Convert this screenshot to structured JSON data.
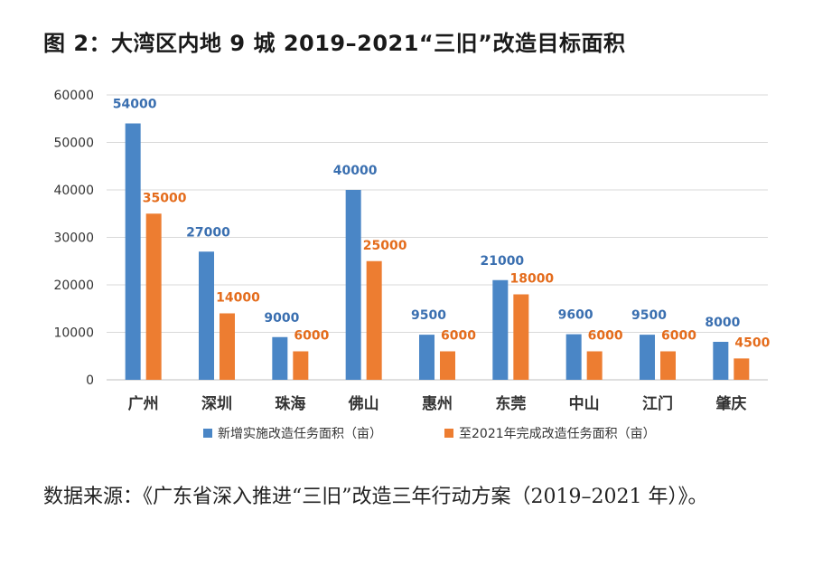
{
  "page": {
    "title": "图 2：大湾区内地 9 城 2019–2021“三旧”改造目标面积",
    "source": "数据来源：《广东省深入推进“三旧”改造三年行动方案（2019–2021 年）》。"
  },
  "chart_data": {
    "type": "bar",
    "categories": [
      "广州",
      "深圳",
      "珠海",
      "佛山",
      "惠州",
      "东莞",
      "中山",
      "江门",
      "肇庆"
    ],
    "series": [
      {
        "name": "新增实施改造任务面积（亩）",
        "color": "#4a86c6",
        "label_color": "#3a6fb0",
        "values": [
          54000,
          27000,
          9000,
          40000,
          9500,
          21000,
          9600,
          9500,
          8000
        ]
      },
      {
        "name": "至2021年完成改造任务面积（亩）",
        "color": "#ed7d31",
        "label_color": "#e46c1c",
        "values": [
          35000,
          14000,
          6000,
          25000,
          6000,
          18000,
          6000,
          6000,
          4500
        ]
      }
    ],
    "ylim": [
      0,
      60000
    ],
    "yticks": [
      0,
      10000,
      20000,
      30000,
      40000,
      50000,
      60000
    ],
    "grid": true,
    "legend_position": "bottom"
  }
}
